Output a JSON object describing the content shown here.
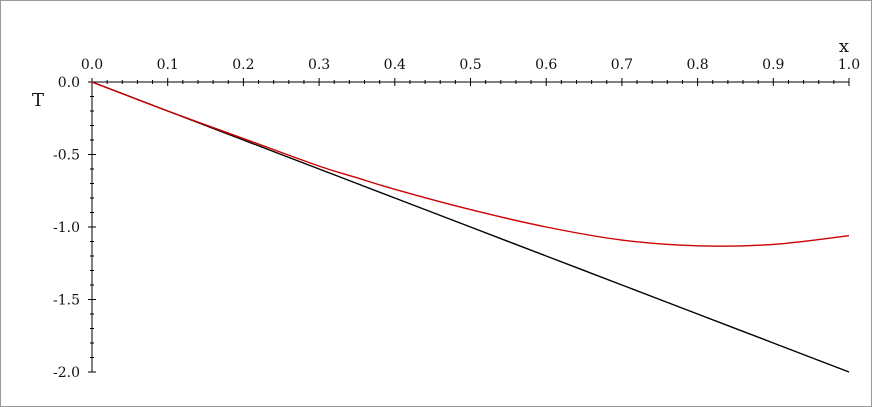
{
  "chart_data": {
    "type": "line",
    "xlabel": "x",
    "ylabel": "T",
    "xlim": [
      0.0,
      1.0
    ],
    "ylim": [
      -2.0,
      0.0
    ],
    "x_ticks": [
      "0.0",
      "0.1",
      "0.2",
      "0.3",
      "0.4",
      "0.5",
      "0.6",
      "0.7",
      "0.8",
      "0.9",
      "1.0"
    ],
    "y_ticks": [
      "0.0",
      "-0.5",
      "-1.0",
      "-1.5",
      "-2.0"
    ],
    "x_axis_position": "top",
    "grid": false,
    "legend": "none",
    "series": [
      {
        "color": "#000000",
        "x": [
          0.0,
          0.1,
          0.2,
          0.3,
          0.4,
          0.5,
          0.6,
          0.7,
          0.8,
          0.9,
          1.0
        ],
        "y": [
          0.0,
          -0.2,
          -0.4,
          -0.6,
          -0.8,
          -1.0,
          -1.2,
          -1.4,
          -1.6,
          -1.8,
          -2.0
        ]
      },
      {
        "color": "#cc0000",
        "x": [
          0.0,
          0.1,
          0.2,
          0.3,
          0.35,
          0.4,
          0.5,
          0.6,
          0.7,
          0.8,
          0.9,
          1.0
        ],
        "y": [
          0.0,
          -0.2,
          -0.39,
          -0.58,
          -0.66,
          -0.74,
          -0.88,
          -1.0,
          -1.09,
          -1.13,
          -1.12,
          -1.06
        ]
      }
    ]
  }
}
